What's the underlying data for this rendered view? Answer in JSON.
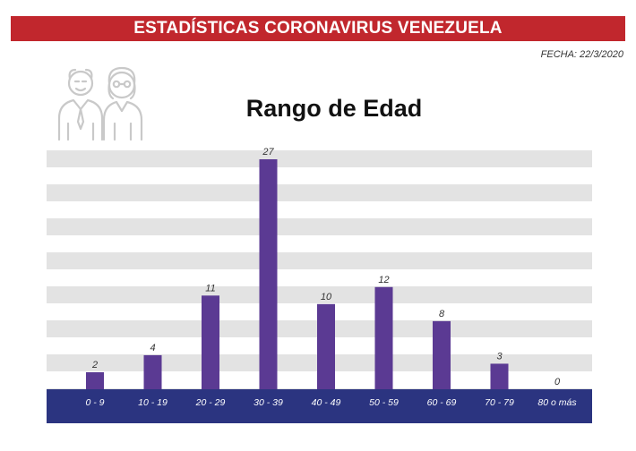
{
  "header": {
    "title": "ESTADÍSTICAS CORONAVIRUS VENEZUELA"
  },
  "date_label": "FECHA: 22/3/2020",
  "icons": {
    "elderly": "elderly-couple-icon"
  },
  "colors": {
    "header_bg": "#c1272d",
    "bar": "#5b3a93",
    "axis_band": "#2b3480",
    "grid_stripe": "#e3e3e3"
  },
  "chart_data": {
    "type": "bar",
    "title": "Rango de Edad",
    "xlabel": "",
    "ylabel": "",
    "categories": [
      "0 - 9",
      "10 - 19",
      "20 - 29",
      "30 - 39",
      "40 - 49",
      "50 - 59",
      "60 - 69",
      "70 - 79",
      "80 o más"
    ],
    "values": [
      2,
      4,
      11,
      27,
      10,
      12,
      8,
      3,
      0
    ],
    "data_labels": [
      "2",
      "4",
      "11",
      "27",
      "10",
      "12",
      "8",
      "3",
      "0"
    ],
    "ylim": [
      0,
      27
    ],
    "grid": true,
    "legend": "none"
  }
}
